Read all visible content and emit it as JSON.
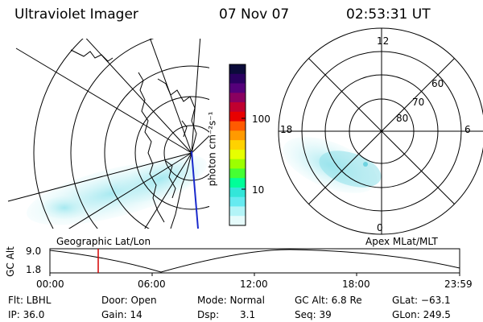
{
  "header": {
    "title": "Ultraviolet Imager",
    "date": "07 Nov 07",
    "time": "02:53:31 UT"
  },
  "colorbar": {
    "unit_label": "photon cm⁻²s⁻¹",
    "ticks": [
      "100",
      "10"
    ],
    "colors": [
      "#0b0b3a",
      "#2a0060",
      "#55007a",
      "#8a0060",
      "#c00030",
      "#e80000",
      "#ff5a00",
      "#ff9a00",
      "#ffd200",
      "#e6ff00",
      "#9cff00",
      "#45ff33",
      "#00ff99",
      "#33e6d9",
      "#66eaf0",
      "#b3f4f7",
      "#e6fbfb"
    ]
  },
  "geo_map": {
    "label": "Geographic Lat/Lon",
    "aurora_color": "#bff0f5"
  },
  "polar_plot": {
    "label": "Apex MLat/MLT",
    "mlt_labels": [
      "12",
      "18",
      "6",
      "0"
    ],
    "lat_labels": [
      "60",
      "70",
      "80"
    ],
    "aurora_color": "#9fe6ef"
  },
  "altitude_plot": {
    "ylabel": "GC Alt",
    "yticks": [
      "9.0",
      "1.8"
    ],
    "xticks": [
      "00:00",
      "06:00",
      "12:00",
      "18:00",
      "23:59"
    ],
    "marker_color": "#d40000"
  },
  "info": {
    "flt": "Flt: LBHL",
    "ip": "IP: 36.0",
    "door": "Door: Open",
    "gain": "Gain: 14",
    "mode": "Mode: Normal",
    "dsp_label": "Dsp:",
    "dsp_value": "3.1",
    "gc_alt": "GC Alt: 6.8 Re",
    "seq": "Seq: 39",
    "glat": "GLat: −63.1",
    "glon": "GLon: 249.5"
  }
}
